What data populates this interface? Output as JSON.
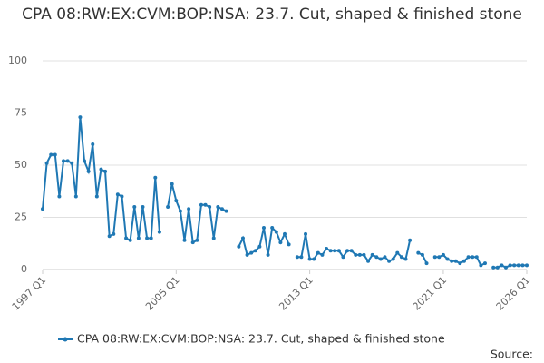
{
  "chart_data": {
    "type": "line",
    "title": "CPA 08:RW:EX:CVM:BOP:NSA: 23.7. Cut, shaped & finished stone",
    "categories": [
      "1997 Q1",
      null,
      null,
      null,
      null,
      null,
      null,
      null,
      null,
      null,
      null,
      null,
      null,
      null,
      null,
      null,
      null,
      null,
      null,
      null,
      null,
      null,
      null,
      null,
      null,
      null,
      null,
      null,
      null,
      null,
      null,
      null,
      "2005 Q1",
      null,
      null,
      null,
      null,
      null,
      null,
      null,
      null,
      null,
      null,
      null,
      null,
      null,
      null,
      null,
      null,
      null,
      null,
      null,
      null,
      null,
      null,
      null,
      null,
      null,
      null,
      null,
      null,
      null,
      null,
      null,
      "2013 Q1",
      null,
      null,
      null,
      null,
      null,
      null,
      null,
      null,
      null,
      null,
      null,
      null,
      null,
      null,
      null,
      null,
      null,
      null,
      null,
      null,
      null,
      null,
      null,
      null,
      null,
      null,
      null,
      null,
      null,
      null,
      null,
      "2021 Q1",
      null,
      null,
      null,
      null,
      null,
      null,
      null,
      null,
      null,
      null,
      null,
      null,
      null,
      null,
      null,
      null,
      null,
      null,
      null,
      "2026 Q1"
    ],
    "series": [
      {
        "name": "CPA 08:RW:EX:CVM:BOP:NSA: 23.7. Cut, shaped & finished stone",
        "color": "#1f78b4",
        "values": [
          29,
          51,
          55,
          55,
          35,
          52,
          52,
          51,
          35,
          73,
          52,
          47,
          60,
          35,
          48,
          47,
          16,
          17,
          36,
          35,
          15,
          14,
          30,
          15,
          30,
          15,
          15,
          44,
          18,
          null,
          30,
          41,
          33,
          28,
          14,
          29,
          13,
          14,
          31,
          31,
          30,
          15,
          30,
          29,
          28,
          null,
          null,
          11,
          15,
          7,
          8,
          9,
          11,
          20,
          7,
          20,
          18,
          13,
          17,
          12,
          null,
          6,
          6,
          17,
          5,
          5,
          8,
          7,
          10,
          9,
          9,
          9,
          6,
          9,
          9,
          7,
          7,
          7,
          4,
          7,
          6,
          5,
          6,
          4,
          5,
          8,
          6,
          5,
          14,
          null,
          8,
          7,
          3,
          null,
          6,
          6,
          7,
          5,
          4,
          4,
          3,
          4,
          6,
          6,
          6,
          2,
          3,
          null,
          1,
          1,
          2,
          1,
          2,
          2,
          2,
          2,
          2
        ]
      }
    ],
    "ylim": [
      0,
      100
    ],
    "yticks": [
      0,
      25,
      50,
      75,
      100
    ],
    "grid": true,
    "legend": "bottom",
    "source": "Source:"
  }
}
